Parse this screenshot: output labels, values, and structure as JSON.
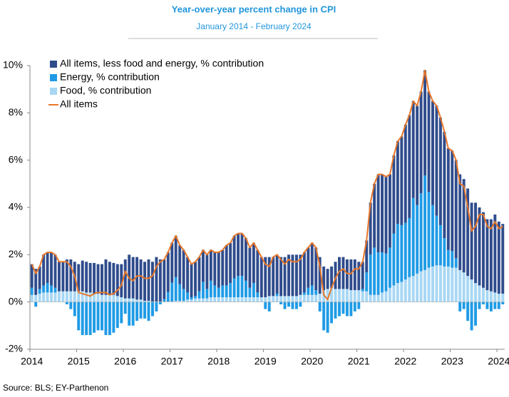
{
  "chart_data": {
    "type": "bar",
    "stacked": true,
    "title": "Year-over-year percent change in CPI",
    "subtitle": "January 2014 - February 2024",
    "source": "Source: BLS; EY-Parthenon",
    "legend": "upper left",
    "categories": [
      "2014",
      null,
      null,
      null,
      null,
      null,
      null,
      null,
      null,
      null,
      null,
      null,
      "2015",
      null,
      null,
      null,
      null,
      null,
      null,
      null,
      null,
      null,
      null,
      null,
      "2016",
      null,
      null,
      null,
      null,
      null,
      null,
      null,
      null,
      null,
      null,
      null,
      "2017",
      null,
      null,
      null,
      null,
      null,
      null,
      null,
      null,
      null,
      null,
      null,
      "2018",
      null,
      null,
      null,
      null,
      null,
      null,
      null,
      null,
      null,
      null,
      null,
      "2019",
      null,
      null,
      null,
      null,
      null,
      null,
      null,
      null,
      null,
      null,
      null,
      "2020",
      null,
      null,
      null,
      null,
      null,
      null,
      null,
      null,
      null,
      null,
      null,
      "2021",
      null,
      null,
      null,
      null,
      null,
      null,
      null,
      null,
      null,
      null,
      null,
      "2022",
      null,
      null,
      null,
      null,
      null,
      null,
      null,
      null,
      null,
      null,
      null,
      "2023",
      null,
      null,
      null,
      null,
      null,
      null,
      null,
      null,
      null,
      null,
      null,
      "2024",
      null
    ],
    "ylim": [
      -2,
      10
    ],
    "yticks": [
      {
        "value": -2,
        "label": "-2%"
      },
      {
        "value": 0,
        "label": "0%"
      },
      {
        "value": 2,
        "label": "2%"
      },
      {
        "value": 4,
        "label": "4%"
      },
      {
        "value": 6,
        "label": "6%"
      },
      {
        "value": 8,
        "label": "8%"
      },
      {
        "value": 10,
        "label": "10%"
      }
    ],
    "series": [
      {
        "name": "All items, less food and energy, % contribution",
        "type": "bar",
        "color": "#2f4c8c",
        "values": [
          1.0,
          1.1,
          0.95,
          1.3,
          1.3,
          1.4,
          1.4,
          1.25,
          1.25,
          1.35,
          1.35,
          1.25,
          1.15,
          1.3,
          1.3,
          1.25,
          1.3,
          1.25,
          1.3,
          1.5,
          1.4,
          1.35,
          1.35,
          1.4,
          1.65,
          1.85,
          1.75,
          1.8,
          1.7,
          1.65,
          1.75,
          1.68,
          1.88,
          1.78,
          1.68,
          1.68,
          1.68,
          1.75,
          1.65,
          1.65,
          1.5,
          1.4,
          1.45,
          1.45,
          1.35,
          1.45,
          1.3,
          1.4,
          1.5,
          1.5,
          1.7,
          1.7,
          1.8,
          1.8,
          1.8,
          1.8,
          1.7,
          1.7,
          1.8,
          1.7,
          1.7,
          1.65,
          1.65,
          1.65,
          1.65,
          1.65,
          1.75,
          1.75,
          1.75,
          1.7,
          1.7,
          1.7,
          1.8,
          1.8,
          1.55,
          1.0,
          0.85,
          0.9,
          1.15,
          1.35,
          1.35,
          1.25,
          1.3,
          1.3,
          1.2,
          1.15,
          1.35,
          2.2,
          2.7,
          3.3,
          3.3,
          3.25,
          3.1,
          3.3,
          3.5,
          3.75,
          4.15,
          4.35,
          4.1,
          4.2,
          4.3,
          4.45,
          4.25,
          4.4,
          4.65,
          4.55,
          4.5,
          4.3,
          4.25,
          4.15,
          4.05,
          3.95,
          3.7,
          3.25,
          3.4,
          3.3,
          3.2,
          3.0,
          3.05,
          3.3,
          3.05,
          2.95
        ]
      },
      {
        "name": "Energy, % contribution",
        "type": "bar",
        "color": "#1f9be6",
        "values": [
          0.3,
          -0.2,
          0.2,
          0.3,
          0.4,
          0.3,
          0.2,
          0.0,
          0.0,
          -0.1,
          -0.3,
          -0.6,
          -1.2,
          -1.4,
          -1.4,
          -1.4,
          -1.3,
          -1.2,
          -1.2,
          -1.4,
          -1.4,
          -1.3,
          -1.1,
          -0.9,
          -0.5,
          -1.0,
          -1.0,
          -0.8,
          -0.7,
          -0.7,
          -0.8,
          -0.6,
          -0.4,
          -0.1,
          0.1,
          0.4,
          0.8,
          1.0,
          0.7,
          0.5,
          0.3,
          0.1,
          0.1,
          0.3,
          0.7,
          0.4,
          0.7,
          0.5,
          0.4,
          0.5,
          0.5,
          0.6,
          0.8,
          0.9,
          0.9,
          0.7,
          0.4,
          0.6,
          0.2,
          0.0,
          -0.3,
          -0.4,
          0.0,
          0.1,
          -0.1,
          -0.3,
          -0.2,
          -0.3,
          -0.3,
          -0.2,
          0.1,
          0.3,
          0.4,
          0.2,
          -0.4,
          -1.2,
          -1.3,
          -0.9,
          -0.7,
          -0.6,
          -0.5,
          -0.6,
          -0.6,
          -0.4,
          -0.3,
          0.1,
          0.8,
          1.7,
          2.0,
          1.8,
          1.7,
          1.6,
          1.7,
          2.2,
          2.5,
          2.4,
          2.4,
          2.5,
          3.3,
          2.9,
          3.3,
          4.0,
          3.2,
          2.6,
          2.1,
          1.7,
          1.2,
          0.7,
          0.7,
          0.4,
          -0.4,
          -0.3,
          -0.8,
          -1.2,
          -1.0,
          -0.3,
          -0.1,
          -0.3,
          -0.4,
          -0.3,
          -0.3,
          -0.1
        ]
      },
      {
        "name": "Food, % contribution",
        "type": "bar",
        "color": "#a8d7f4",
        "values": [
          0.3,
          0.3,
          0.35,
          0.4,
          0.4,
          0.4,
          0.4,
          0.45,
          0.45,
          0.45,
          0.45,
          0.45,
          0.45,
          0.45,
          0.4,
          0.4,
          0.35,
          0.35,
          0.3,
          0.3,
          0.3,
          0.3,
          0.25,
          0.2,
          0.15,
          0.15,
          0.15,
          0.1,
          0.1,
          0.05,
          0.05,
          0.02,
          0.02,
          0.02,
          0.02,
          0.02,
          0.02,
          0.05,
          0.05,
          0.05,
          0.1,
          0.1,
          0.15,
          0.15,
          0.15,
          0.15,
          0.2,
          0.2,
          0.2,
          0.2,
          0.2,
          0.2,
          0.2,
          0.2,
          0.2,
          0.2,
          0.2,
          0.2,
          0.2,
          0.2,
          0.2,
          0.25,
          0.25,
          0.25,
          0.25,
          0.25,
          0.25,
          0.25,
          0.25,
          0.3,
          0.3,
          0.3,
          0.3,
          0.3,
          0.35,
          0.5,
          0.55,
          0.6,
          0.55,
          0.55,
          0.55,
          0.55,
          0.5,
          0.5,
          0.5,
          0.45,
          0.45,
          0.3,
          0.3,
          0.3,
          0.4,
          0.45,
          0.6,
          0.7,
          0.8,
          0.85,
          0.95,
          1.05,
          1.1,
          1.2,
          1.3,
          1.35,
          1.45,
          1.5,
          1.55,
          1.55,
          1.5,
          1.5,
          1.45,
          1.45,
          1.35,
          1.25,
          1.1,
          0.95,
          0.8,
          0.7,
          0.6,
          0.5,
          0.45,
          0.4,
          0.35,
          0.35
        ]
      },
      {
        "name": "All items",
        "type": "line",
        "color": "#e8772a",
        "values": [
          1.6,
          1.2,
          1.5,
          2.0,
          2.1,
          2.1,
          2.0,
          1.7,
          1.7,
          1.7,
          1.5,
          1.1,
          0.4,
          0.35,
          0.3,
          0.25,
          0.35,
          0.4,
          0.4,
          0.4,
          0.3,
          0.35,
          0.5,
          0.7,
          1.3,
          1.0,
          0.9,
          1.1,
          1.1,
          1.0,
          1.0,
          1.1,
          1.5,
          1.7,
          1.8,
          2.1,
          2.5,
          2.8,
          2.4,
          2.2,
          1.9,
          1.6,
          1.7,
          1.9,
          2.2,
          2.0,
          2.2,
          2.1,
          2.1,
          2.2,
          2.4,
          2.5,
          2.8,
          2.9,
          2.9,
          2.7,
          2.3,
          2.5,
          2.2,
          1.9,
          1.6,
          1.5,
          1.9,
          2.0,
          1.8,
          1.6,
          1.8,
          1.7,
          1.7,
          1.8,
          2.1,
          2.3,
          2.5,
          2.3,
          1.5,
          0.3,
          0.1,
          0.6,
          1.0,
          1.3,
          1.4,
          1.2,
          1.2,
          1.4,
          1.4,
          1.7,
          2.6,
          4.2,
          5.0,
          5.4,
          5.4,
          5.3,
          5.4,
          6.2,
          6.8,
          7.0,
          7.5,
          7.9,
          8.5,
          8.3,
          8.9,
          9.8,
          8.9,
          8.5,
          8.3,
          7.8,
          7.2,
          6.5,
          6.4,
          6.0,
          5.0,
          4.9,
          4.0,
          3.0,
          3.2,
          3.7,
          3.7,
          3.2,
          3.1,
          3.4,
          3.1,
          3.2
        ]
      }
    ]
  }
}
